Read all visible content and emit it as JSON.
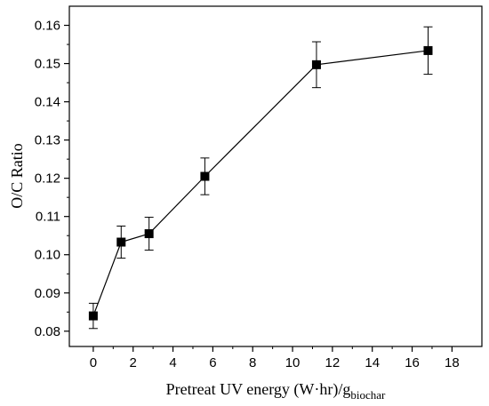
{
  "chart_data": {
    "type": "scatter",
    "title": "",
    "xlabel": "Pretreat UV energy (W·hr)/g",
    "xlabel_subscript": "biochar",
    "ylabel": "O/C Ratio",
    "xlim": [
      -1.2,
      19.5
    ],
    "ylim": [
      0.076,
      0.165
    ],
    "x_ticks": [
      0,
      2,
      4,
      6,
      8,
      10,
      12,
      14,
      16,
      18
    ],
    "y_ticks": [
      0.08,
      0.09,
      0.1,
      0.11,
      0.12,
      0.13,
      0.14,
      0.15,
      0.16
    ],
    "x_tick_labels": [
      "0",
      "2",
      "4",
      "6",
      "8",
      "10",
      "12",
      "14",
      "16",
      "18"
    ],
    "y_tick_labels": [
      "0.08",
      "0.09",
      "0.10",
      "0.11",
      "0.12",
      "0.13",
      "0.14",
      "0.15",
      "0.16"
    ],
    "series": [
      {
        "x": [
          0,
          1.4,
          2.8,
          5.6,
          11.2,
          16.8
        ],
        "y": [
          0.084,
          0.1033,
          0.1055,
          0.1205,
          0.1497,
          0.1534
        ],
        "error": [
          0.0033,
          0.0042,
          0.0043,
          0.0048,
          0.006,
          0.0062
        ],
        "marker": "square",
        "color": "#000000"
      }
    ],
    "grid": false,
    "legend": "none"
  }
}
